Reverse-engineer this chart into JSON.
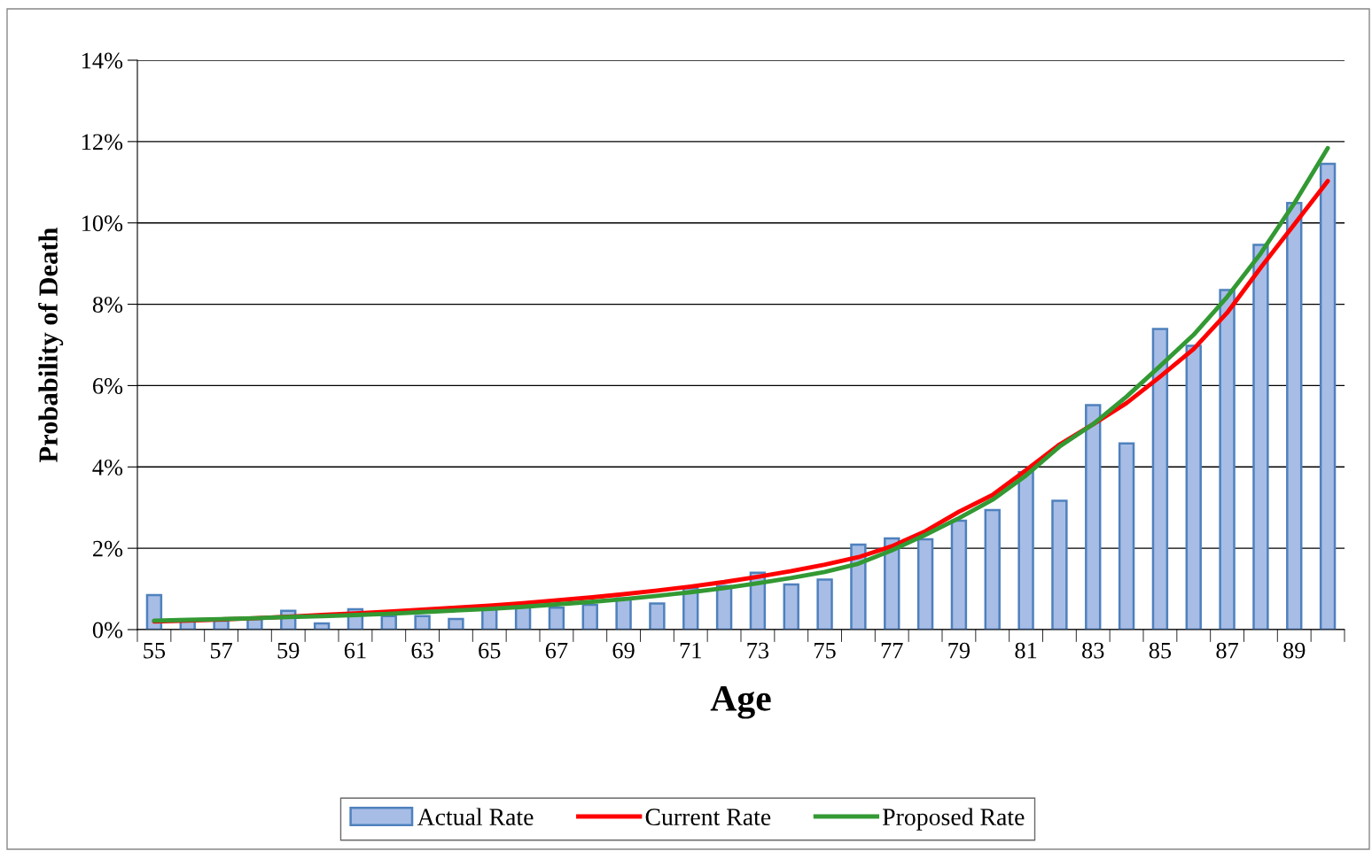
{
  "chart_data": {
    "type": "bar",
    "xlabel": "Age",
    "ylabel": "Probability of Death",
    "categories": [
      "55",
      null,
      "57",
      null,
      "59",
      null,
      "61",
      null,
      "63",
      null,
      "65",
      null,
      "67",
      null,
      "69",
      null,
      "71",
      null,
      "73",
      null,
      "75",
      null,
      "77",
      null,
      "79",
      null,
      "81",
      null,
      "83",
      null,
      "85",
      null,
      "87",
      null,
      "89",
      null
    ],
    "series": [
      {
        "name": "Actual Rate",
        "color": "#a7bde6",
        "values": [
          0.85,
          0.22,
          0.22,
          0.26,
          0.46,
          0.15,
          0.5,
          0.33,
          0.33,
          0.26,
          0.5,
          0.57,
          0.54,
          0.61,
          0.77,
          0.64,
          1.02,
          1.07,
          1.4,
          1.11,
          1.23,
          2.09,
          2.24,
          2.22,
          2.68,
          2.94,
          3.87,
          3.17,
          5.52,
          4.58,
          7.39,
          6.98,
          8.35,
          9.46,
          10.49,
          11.45
        ]
      },
      {
        "name": "Current Rate",
        "type": "line",
        "color": "#ff0000",
        "values": [
          0.2,
          0.22,
          0.25,
          0.28,
          0.32,
          0.36,
          0.4,
          0.44,
          0.49,
          0.54,
          0.59,
          0.65,
          0.72,
          0.79,
          0.87,
          0.96,
          1.06,
          1.17,
          1.3,
          1.44,
          1.6,
          1.78,
          2.05,
          2.42,
          2.9,
          3.31,
          3.92,
          4.55,
          5.05,
          5.57,
          6.22,
          6.9,
          7.79,
          8.9,
          9.96,
          11.03
        ]
      },
      {
        "name": "Proposed Rate",
        "type": "line",
        "color": "#339933",
        "values": [
          0.22,
          0.24,
          0.26,
          0.28,
          0.31,
          0.33,
          0.36,
          0.39,
          0.43,
          0.47,
          0.51,
          0.56,
          0.62,
          0.68,
          0.75,
          0.83,
          0.92,
          1.02,
          1.14,
          1.27,
          1.42,
          1.62,
          1.95,
          2.33,
          2.74,
          3.19,
          3.79,
          4.5,
          5.05,
          5.73,
          6.48,
          7.25,
          8.18,
          9.25,
          10.48,
          11.84
        ]
      }
    ],
    "ylim": [
      0,
      14
    ],
    "yticks": [
      {
        "value": 0,
        "label": "0%"
      },
      {
        "value": 2,
        "label": "2%"
      },
      {
        "value": 4,
        "label": "4%"
      },
      {
        "value": 6,
        "label": "6%"
      },
      {
        "value": 8,
        "label": "8%"
      },
      {
        "value": 10,
        "label": "10%"
      },
      {
        "value": 12,
        "label": "12%"
      },
      {
        "value": 14,
        "label": "14%"
      }
    ],
    "grid": "y",
    "legend": "bottom",
    "marker": "none",
    "line_style": "solid"
  }
}
